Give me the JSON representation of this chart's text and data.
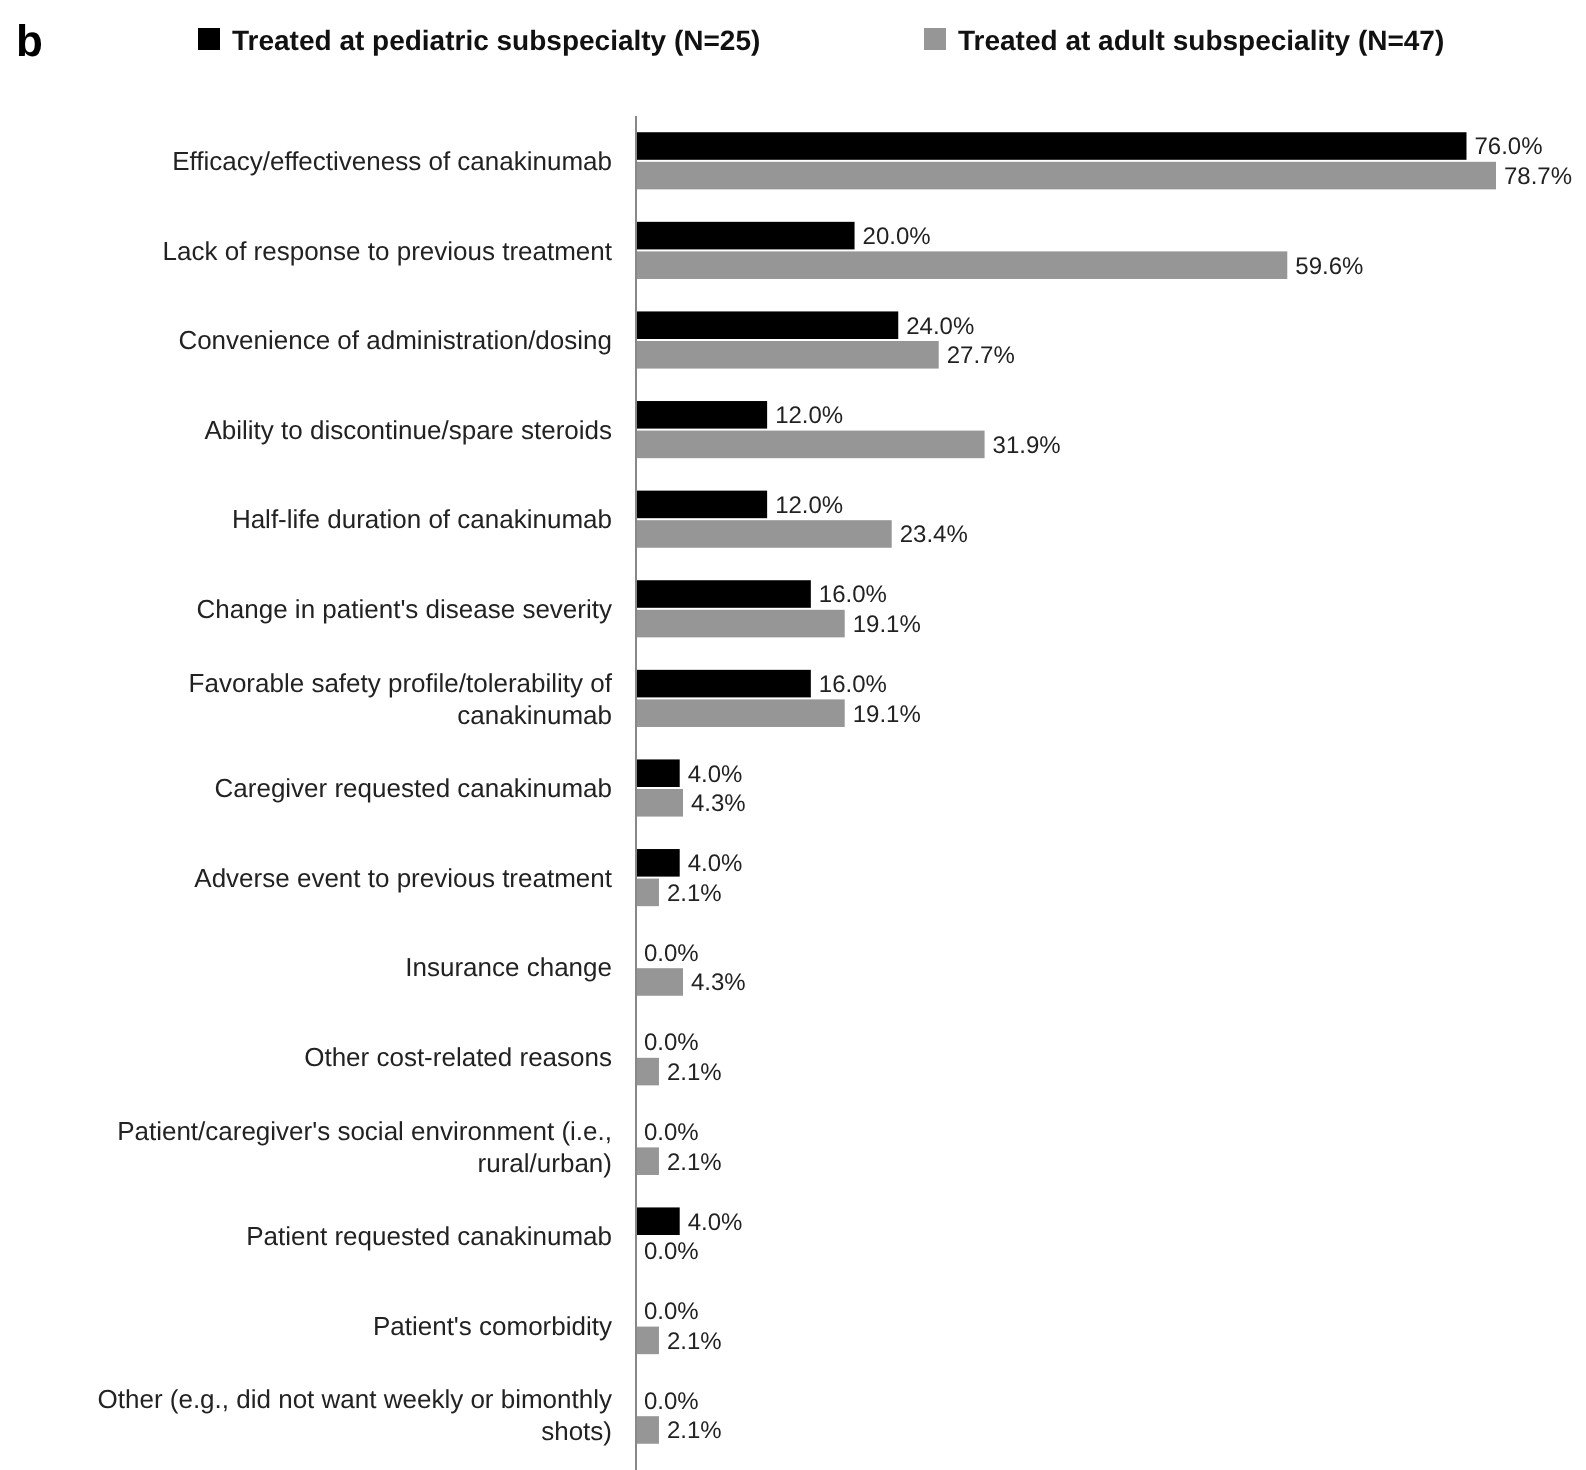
{
  "chart_data": {
    "type": "bar",
    "orientation": "horizontal",
    "legend": "top",
    "annotations": [
      "b"
    ],
    "categories": [
      "Efficacy/effectiveness of canakinumab",
      "Lack of response to previous treatment",
      "Convenience of administration/dosing",
      "Ability to discontinue/spare steroids",
      "Half-life duration of canakinumab",
      "Change in patient's disease severity",
      "Favorable safety profile/tolerability of canakinumab",
      "Caregiver requested canakinumab",
      "Adverse event to previous treatment",
      "Insurance change",
      "Other cost-related reasons",
      "Patient/caregiver's social environment (i.e., rural/urban)",
      "Patient requested canakinumab",
      "Patient's comorbidity",
      "Other (e.g., did not want weekly or bimonthly shots)"
    ],
    "series": [
      {
        "name": "Treated at pediatric subspecialty (N=25)",
        "color": "#000000",
        "values": [
          76.0,
          20.0,
          24.0,
          12.0,
          12.0,
          16.0,
          16.0,
          4.0,
          4.0,
          0.0,
          0.0,
          0.0,
          4.0,
          0.0,
          0.0
        ],
        "value_labels": [
          "76.0%",
          "20.0%",
          "24.0%",
          "12.0%",
          "12.0%",
          "16.0%",
          "16.0%",
          "4.0%",
          "4.0%",
          "0.0%",
          "0.0%",
          "0.0%",
          "4.0%",
          "0.0%",
          "0.0%"
        ]
      },
      {
        "name": "Treated at adult subspeciality (N=47)",
        "color": "#969696",
        "values": [
          78.7,
          59.6,
          27.7,
          31.9,
          23.4,
          19.1,
          19.1,
          4.3,
          2.1,
          4.3,
          2.1,
          2.1,
          0.0,
          2.1,
          2.1
        ],
        "value_labels": [
          "78.7%",
          "59.6%",
          "27.7%",
          "31.9%",
          "23.4%",
          "19.1%",
          "19.1%",
          "4.3%",
          "2.1%",
          "4.3%",
          "2.1%",
          "2.1%",
          "0.0%",
          "2.1%",
          "2.1%"
        ]
      }
    ]
  }
}
